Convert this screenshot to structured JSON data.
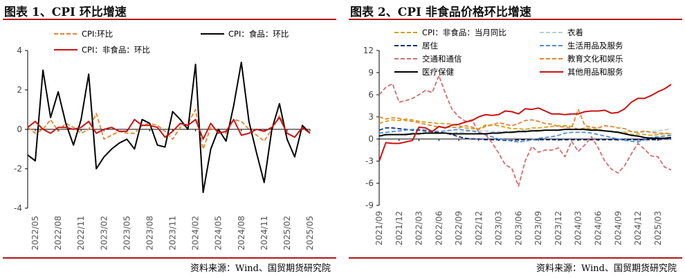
{
  "left_panel": {
    "title": "图表 1、CPI 环比增速",
    "source": "资料来源：Wind、国贸期货研究院"
  },
  "right_panel": {
    "title": "图表 2、CPI 非食品价格环比增速",
    "source": "资料来源：Wind、国贸期货研究院"
  },
  "colors": {
    "rule": "#b01616",
    "cpi": "#e8822a",
    "food": "#000000",
    "nonfood": "#cc1111"
  },
  "chart_data": [
    {
      "type": "line",
      "title": "图表 1、CPI 环比增速",
      "ylim": [
        -4,
        4
      ],
      "yticks": [
        -4,
        -2,
        0,
        2,
        4
      ],
      "grid": false,
      "legend_position": "top",
      "x_ticks": [
        "2022/05",
        "2022/08",
        "2022/11",
        "2023/02",
        "2023/05",
        "2023/08",
        "2023/11",
        "2024/02",
        "2024/05",
        "2024/08",
        "2024/11",
        "2025/02",
        "2025/05"
      ],
      "x": [
        "2022/04",
        "2022/05",
        "2022/06",
        "2022/07",
        "2022/08",
        "2022/09",
        "2022/10",
        "2022/11",
        "2022/12",
        "2023/01",
        "2023/02",
        "2023/03",
        "2023/04",
        "2023/05",
        "2023/06",
        "2023/07",
        "2023/08",
        "2023/09",
        "2023/10",
        "2023/11",
        "2023/12",
        "2024/01",
        "2024/02",
        "2024/03",
        "2024/04",
        "2024/05",
        "2024/06",
        "2024/07",
        "2024/08",
        "2024/09",
        "2024/10",
        "2024/11",
        "2024/12",
        "2025/01",
        "2025/02",
        "2025/03",
        "2025/04",
        "2025/05"
      ],
      "series": [
        {
          "name": "CPI:环比",
          "style": "dashed",
          "color": "#e8822a",
          "values": [
            0.1,
            -0.2,
            0.0,
            0.5,
            -0.1,
            0.3,
            0.1,
            -0.2,
            0.0,
            0.8,
            -0.5,
            -0.3,
            -0.1,
            -0.2,
            -0.2,
            0.2,
            0.3,
            0.2,
            -0.1,
            -0.5,
            0.1,
            0.3,
            1.0,
            -1.0,
            0.1,
            -0.1,
            -0.2,
            0.5,
            0.4,
            0.0,
            -0.3,
            -0.6,
            0.0,
            0.7,
            -0.2,
            -0.4,
            0.1,
            -0.2
          ]
        },
        {
          "name": "CPI：食品：环比",
          "style": "solid",
          "color": "#000000",
          "values": [
            -1.3,
            -1.6,
            3.0,
            0.6,
            1.9,
            0.3,
            -0.8,
            0.5,
            2.8,
            -2.0,
            -1.4,
            -1.0,
            -0.7,
            -0.5,
            -1.0,
            0.5,
            0.3,
            -0.8,
            -0.9,
            0.9,
            0.5,
            0.0,
            3.3,
            -3.2,
            -1.0,
            0.0,
            -0.6,
            1.2,
            3.4,
            0.4,
            -1.2,
            -2.7,
            0.0,
            1.3,
            -0.5,
            -1.4,
            0.2,
            -0.2
          ]
        },
        {
          "name": "CPI：非食品：环比",
          "style": "solid",
          "color": "#cc1111",
          "values": [
            0.1,
            0.4,
            0.0,
            -0.2,
            0.1,
            0.1,
            0.0,
            0.1,
            0.4,
            -0.2,
            0.0,
            0.1,
            -0.1,
            -0.1,
            0.5,
            0.2,
            0.2,
            0.1,
            -0.4,
            -0.1,
            0.3,
            0.2,
            0.5,
            -0.5,
            0.3,
            -0.2,
            -0.1,
            0.5,
            -0.3,
            -0.2,
            0.0,
            -0.1,
            0.1,
            0.6,
            -0.2,
            -0.4,
            0.1,
            -0.2
          ]
        }
      ]
    },
    {
      "type": "line",
      "title": "图表 2、CPI 非食品价格环比增速",
      "ylim": [
        -9,
        12
      ],
      "yticks": [
        -9,
        -6,
        -3,
        0,
        3,
        6,
        9,
        12
      ],
      "grid": false,
      "legend_position": "top",
      "x_ticks": [
        "2021/09",
        "2021/12",
        "2022/03",
        "2022/06",
        "2022/09",
        "2022/12",
        "2023/03",
        "2023/06",
        "2023/09",
        "2023/12",
        "2024/03",
        "2024/06",
        "2024/09",
        "2024/12",
        "2025/03"
      ],
      "x": [
        "2021/09",
        "2021/10",
        "2021/11",
        "2021/12",
        "2022/01",
        "2022/02",
        "2022/03",
        "2022/04",
        "2022/05",
        "2022/06",
        "2022/07",
        "2022/08",
        "2022/09",
        "2022/10",
        "2022/11",
        "2022/12",
        "2023/01",
        "2023/02",
        "2023/03",
        "2023/04",
        "2023/05",
        "2023/06",
        "2023/07",
        "2023/08",
        "2023/09",
        "2023/10",
        "2023/11",
        "2023/12",
        "2024/01",
        "2024/02",
        "2024/03",
        "2024/04",
        "2024/05",
        "2024/06",
        "2024/07",
        "2024/08",
        "2024/09",
        "2024/10",
        "2024/11",
        "2024/12",
        "2025/01",
        "2025/02",
        "2025/03",
        "2025/04",
        "2025/05"
      ],
      "series": [
        {
          "name": "CPI：非食品：当月同比",
          "style": "dashed",
          "color": "#d4a017",
          "values": [
            2.1,
            2.4,
            2.6,
            2.5,
            2.7,
            2.6,
            2.4,
            2.3,
            2.2,
            2.1,
            2.1,
            2.0,
            1.8,
            1.5,
            1.4,
            1.4,
            1.9,
            1.9,
            1.8,
            1.6,
            1.4,
            1.4,
            1.3,
            1.5,
            1.5,
            1.6,
            1.7,
            1.8,
            1.8,
            1.7,
            1.3,
            1.5,
            1.4,
            1.3,
            1.1,
            1.0,
            0.9,
            0.9,
            0.6,
            0.7,
            0.6,
            0.5,
            0.6,
            0.7,
            0.7
          ]
        },
        {
          "name": "衣着",
          "style": "dashed",
          "color": "#b8d0cc",
          "values": [
            0.3,
            0.5,
            0.6,
            0.6,
            0.7,
            0.8,
            0.8,
            0.9,
            0.9,
            0.8,
            0.8,
            0.8,
            0.9,
            1.0,
            1.1,
            1.1,
            1.1,
            1.0,
            1.0,
            1.0,
            1.0,
            1.1,
            1.2,
            1.2,
            1.2,
            1.2,
            1.2,
            1.3,
            1.3,
            1.3,
            1.3,
            1.2,
            1.2,
            1.2,
            1.1,
            1.1,
            1.0,
            1.0,
            1.0,
            1.0,
            0.9,
            1.0,
            1.1,
            1.2,
            1.4
          ]
        },
        {
          "name": "居住",
          "style": "dashed",
          "color": "#0a2a7a",
          "values": [
            1.2,
            1.5,
            1.5,
            1.4,
            1.3,
            1.2,
            1.2,
            1.1,
            1.0,
            0.9,
            0.8,
            0.6,
            0.3,
            0.1,
            0.0,
            0.0,
            -0.1,
            -0.1,
            -0.1,
            -0.2,
            -0.2,
            -0.1,
            -0.1,
            -0.1,
            -0.1,
            -0.1,
            -0.1,
            -0.1,
            -0.1,
            -0.1,
            -0.1,
            -0.1,
            -0.1,
            -0.1,
            -0.1,
            -0.1,
            -0.1,
            -0.1,
            -0.1,
            -0.1,
            -0.1,
            -0.1,
            -0.1,
            0.0,
            0.0
          ]
        },
        {
          "name": "生活用品及服务",
          "style": "dashed",
          "color": "#4a8fd8",
          "values": [
            0.8,
            0.9,
            1.0,
            1.1,
            1.2,
            1.3,
            1.3,
            1.2,
            1.1,
            1.0,
            1.1,
            1.2,
            1.3,
            1.2,
            1.1,
            0.9,
            0.6,
            0.3,
            0.0,
            -0.1,
            -0.3,
            -0.4,
            -0.3,
            -0.1,
            0.1,
            0.2,
            0.3,
            0.5,
            0.8,
            0.9,
            0.9,
            0.9,
            0.8,
            0.6,
            0.4,
            0.2,
            0.0,
            -0.2,
            -0.3,
            -0.4,
            -0.1,
            0.2,
            0.3,
            0.4,
            0.5
          ]
        },
        {
          "name": "交通和通信",
          "style": "dashed",
          "color": "#d46c6c",
          "values": [
            6.0,
            7.0,
            7.5,
            5.0,
            5.2,
            5.5,
            6.0,
            6.6,
            6.3,
            8.6,
            6.1,
            4.0,
            3.0,
            2.4,
            2.6,
            0.9,
            0.6,
            -0.5,
            -1.9,
            -3.5,
            -4.0,
            -6.4,
            -3.0,
            -1.0,
            -1.8,
            -1.5,
            -1.5,
            -1.2,
            -2.4,
            -0.3,
            -1.7,
            -0.8,
            0.3,
            -1.2,
            -3.0,
            -4.1,
            -4.6,
            -3.6,
            -2.0,
            -0.6,
            -1.4,
            -2.3,
            -2.4,
            -3.8,
            -4.2
          ]
        },
        {
          "name": "教育文化和娱乐",
          "style": "dashed",
          "color": "#e8822a",
          "values": [
            3.0,
            2.7,
            2.9,
            2.8,
            2.5,
            2.4,
            2.2,
            2.0,
            1.8,
            1.6,
            1.6,
            1.6,
            1.5,
            1.8,
            1.6,
            1.3,
            1.7,
            1.9,
            2.2,
            2.0,
            1.8,
            2.1,
            2.5,
            2.6,
            2.4,
            2.1,
            2.0,
            1.7,
            1.6,
            1.5,
            4.0,
            1.8,
            1.6,
            1.5,
            1.8,
            1.7,
            1.5,
            1.4,
            1.0,
            0.9,
            1.1,
            0.9,
            0.8,
            0.8,
            0.7
          ]
        },
        {
          "name": "医疗保健",
          "style": "solid",
          "color": "#000000",
          "values": [
            0.4,
            0.6,
            0.6,
            0.6,
            0.6,
            0.7,
            0.7,
            0.8,
            0.8,
            0.8,
            0.8,
            0.7,
            0.7,
            0.7,
            0.7,
            0.7,
            0.7,
            0.8,
            0.8,
            0.9,
            0.9,
            1.0,
            1.0,
            1.1,
            1.1,
            1.2,
            1.2,
            1.2,
            1.3,
            1.3,
            1.3,
            1.3,
            1.2,
            1.2,
            1.1,
            1.0,
            0.9,
            0.7,
            0.5,
            0.4,
            0.2,
            0.1,
            0.1,
            0.1,
            0.2
          ]
        },
        {
          "name": "其他用品和服务",
          "style": "solid",
          "color": "#cc1111",
          "values": [
            -3.0,
            -0.5,
            -0.6,
            -0.6,
            -0.4,
            -0.2,
            1.6,
            1.5,
            1.0,
            1.7,
            1.5,
            1.9,
            2.0,
            2.3,
            2.5,
            3.0,
            3.3,
            3.2,
            3.3,
            3.8,
            3.7,
            3.4,
            4.1,
            4.0,
            4.2,
            3.8,
            3.4,
            3.4,
            3.3,
            3.4,
            3.4,
            3.7,
            3.8,
            3.8,
            3.9,
            3.5,
            3.6,
            4.1,
            5.0,
            5.5,
            5.5,
            5.9,
            6.4,
            6.8,
            7.4
          ]
        }
      ]
    }
  ]
}
